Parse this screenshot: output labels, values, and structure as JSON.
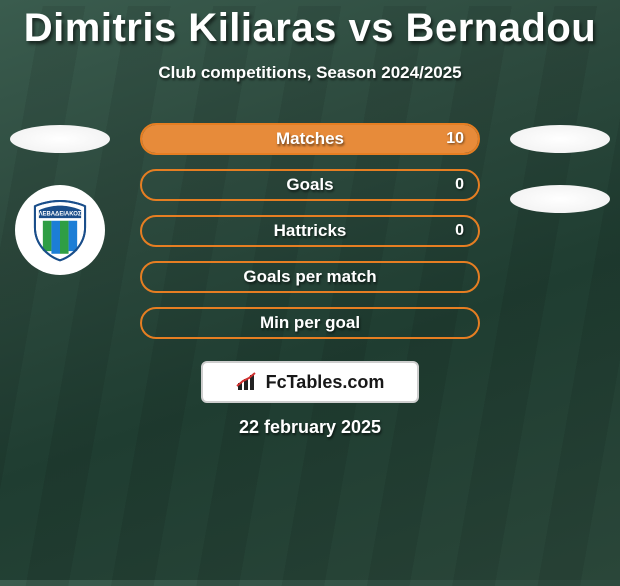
{
  "title": "Dimitris Kiliaras vs Bernadou",
  "subtitle": "Club competitions, Season 2024/2025",
  "date": "22 february 2025",
  "brand": "FcTables.com",
  "side_left": {
    "ovals": 1,
    "club_badge_text": "ΛΕΒΑΔΕΙΑΚΟΣ",
    "club_badge_stripes": [
      "#2f9e44",
      "#1c7ed6",
      "#2f9e44",
      "#1c7ed6"
    ]
  },
  "side_right": {
    "ovals": 2
  },
  "stats": [
    {
      "label": "Matches",
      "value": "10",
      "fill_pct": 100,
      "color": "#e67e22"
    },
    {
      "label": "Goals",
      "value": "0",
      "fill_pct": 0,
      "color": "#e67e22"
    },
    {
      "label": "Hattricks",
      "value": "0",
      "fill_pct": 0,
      "color": "#e67e22"
    },
    {
      "label": "Goals per match",
      "value": "",
      "fill_pct": 0,
      "color": "#e67e22"
    },
    {
      "label": "Min per goal",
      "value": "",
      "fill_pct": 0,
      "color": "#e67e22"
    }
  ],
  "colors": {
    "background": "#2d4a3e",
    "stat_border": "#e67e22",
    "stat_fill": "#e78b3a",
    "brand_border": "#cecece"
  }
}
